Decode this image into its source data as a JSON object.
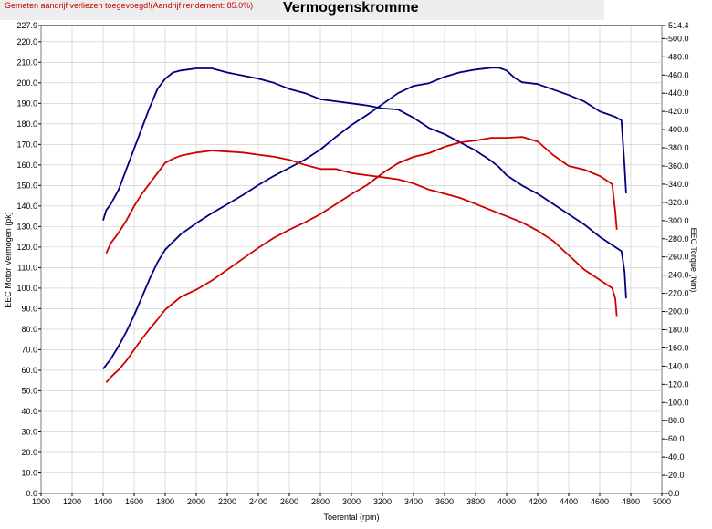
{
  "header": {
    "note": "Gemeten aandrijf verliezen toegevoegd!(Aandrijf rendement: 85.0%)",
    "title": "Vermogenskromme"
  },
  "chart_data": {
    "type": "line",
    "xlabel": "Toerental (rpm)",
    "ylabel_left": "EEC Motor Vermogen (pk)",
    "ylabel_right": "EEC Torque (Nm)",
    "xlim": [
      1000,
      5000
    ],
    "ylim_left": [
      0,
      227.9
    ],
    "ylim_right": [
      0,
      514.4
    ],
    "x_ticks": [
      1000,
      1200,
      1400,
      1600,
      1800,
      2000,
      2200,
      2400,
      2600,
      2800,
      3000,
      3200,
      3400,
      3600,
      3800,
      4000,
      4200,
      4400,
      4600,
      4800,
      5000
    ],
    "y_left_ticks": [
      "0.0",
      "10.0",
      "20.0",
      "30.0",
      "40.0",
      "50.0",
      "60.0",
      "70.0",
      "80.0",
      "90.0",
      "100.0",
      "110.0",
      "120.0",
      "130.0",
      "140.0",
      "150.0",
      "160.0",
      "170.0",
      "180.0",
      "190.0",
      "200.0",
      "210.0",
      "220.0",
      "227.9"
    ],
    "y_left_values": [
      0,
      10,
      20,
      30,
      40,
      50,
      60,
      70,
      80,
      90,
      100,
      110,
      120,
      130,
      140,
      150,
      160,
      170,
      180,
      190,
      200,
      210,
      220,
      227.9
    ],
    "y_right_ticks": [
      "0.0",
      "20.0",
      "40.0",
      "60.0",
      "80.0",
      "100.0",
      "120.0",
      "140.0",
      "160.0",
      "180.0",
      "200.0",
      "220.0",
      "240.0",
      "260.0",
      "280.0",
      "300.0",
      "320.0",
      "340.0",
      "360.0",
      "380.0",
      "400.0",
      "420.0",
      "440.0",
      "460.0",
      "480.0",
      "500.0",
      "514.4"
    ],
    "y_right_values": [
      0,
      20,
      40,
      60,
      80,
      100,
      120,
      140,
      160,
      180,
      200,
      220,
      240,
      260,
      280,
      300,
      320,
      340,
      360,
      380,
      400,
      420,
      440,
      460,
      480,
      500,
      514.4
    ],
    "grid": true,
    "series": [
      {
        "axis": "left",
        "color": "#000080",
        "points": [
          [
            1400,
            133
          ],
          [
            1420,
            138
          ],
          [
            1450,
            141
          ],
          [
            1500,
            148
          ],
          [
            1550,
            158
          ],
          [
            1600,
            168
          ],
          [
            1650,
            178
          ],
          [
            1700,
            188
          ],
          [
            1750,
            197
          ],
          [
            1800,
            202
          ],
          [
            1850,
            205
          ],
          [
            1900,
            206
          ],
          [
            1950,
            206.5
          ],
          [
            2000,
            207
          ],
          [
            2050,
            207
          ],
          [
            2100,
            207
          ],
          [
            2200,
            205
          ],
          [
            2300,
            203.5
          ],
          [
            2400,
            202
          ],
          [
            2500,
            200
          ],
          [
            2600,
            197
          ],
          [
            2700,
            195
          ],
          [
            2800,
            192
          ],
          [
            2900,
            191
          ],
          [
            3000,
            190
          ],
          [
            3100,
            189
          ],
          [
            3200,
            187.5
          ],
          [
            3300,
            187
          ],
          [
            3400,
            183
          ],
          [
            3500,
            178
          ],
          [
            3600,
            175
          ],
          [
            3700,
            171
          ],
          [
            3800,
            167
          ],
          [
            3900,
            162
          ],
          [
            3950,
            159
          ],
          [
            4000,
            155
          ],
          [
            4100,
            150
          ],
          [
            4200,
            146
          ],
          [
            4300,
            141
          ],
          [
            4400,
            136
          ],
          [
            4500,
            131
          ],
          [
            4600,
            125
          ],
          [
            4700,
            120
          ],
          [
            4740,
            118
          ],
          [
            4760,
            108
          ],
          [
            4770,
            95
          ]
        ]
      },
      {
        "axis": "right",
        "color": "#000080",
        "points": [
          [
            1400,
            137
          ],
          [
            1450,
            148
          ],
          [
            1500,
            162
          ],
          [
            1550,
            178
          ],
          [
            1600,
            196
          ],
          [
            1650,
            216
          ],
          [
            1700,
            236
          ],
          [
            1750,
            254
          ],
          [
            1800,
            268
          ],
          [
            1900,
            285
          ],
          [
            2000,
            297
          ],
          [
            2100,
            308
          ],
          [
            2200,
            318
          ],
          [
            2300,
            328
          ],
          [
            2400,
            339
          ],
          [
            2500,
            349
          ],
          [
            2600,
            358
          ],
          [
            2700,
            367
          ],
          [
            2800,
            378
          ],
          [
            2900,
            392
          ],
          [
            3000,
            405
          ],
          [
            3100,
            416
          ],
          [
            3200,
            428
          ],
          [
            3300,
            440
          ],
          [
            3400,
            448
          ],
          [
            3500,
            451
          ],
          [
            3600,
            458
          ],
          [
            3700,
            463
          ],
          [
            3800,
            466
          ],
          [
            3900,
            468
          ],
          [
            3950,
            468
          ],
          [
            4000,
            465
          ],
          [
            4050,
            457
          ],
          [
            4100,
            452
          ],
          [
            4200,
            450
          ],
          [
            4300,
            444
          ],
          [
            4400,
            438
          ],
          [
            4500,
            431
          ],
          [
            4600,
            420
          ],
          [
            4700,
            414
          ],
          [
            4740,
            410
          ],
          [
            4760,
            360
          ],
          [
            4770,
            330
          ]
        ]
      },
      {
        "axis": "left",
        "color": "#cc0000",
        "points": [
          [
            1420,
            117
          ],
          [
            1450,
            122
          ],
          [
            1500,
            127
          ],
          [
            1550,
            133
          ],
          [
            1600,
            140
          ],
          [
            1650,
            146
          ],
          [
            1700,
            151
          ],
          [
            1750,
            156
          ],
          [
            1800,
            161
          ],
          [
            1850,
            163
          ],
          [
            1900,
            164.5
          ],
          [
            2000,
            166
          ],
          [
            2100,
            167
          ],
          [
            2200,
            166.5
          ],
          [
            2300,
            166
          ],
          [
            2400,
            165
          ],
          [
            2500,
            164
          ],
          [
            2600,
            162.5
          ],
          [
            2700,
            160
          ],
          [
            2800,
            158
          ],
          [
            2900,
            158
          ],
          [
            3000,
            156
          ],
          [
            3100,
            155
          ],
          [
            3200,
            154
          ],
          [
            3300,
            153
          ],
          [
            3400,
            151
          ],
          [
            3500,
            148
          ],
          [
            3600,
            146
          ],
          [
            3700,
            144
          ],
          [
            3800,
            141
          ],
          [
            3900,
            138
          ],
          [
            4000,
            135
          ],
          [
            4100,
            132
          ],
          [
            4200,
            128
          ],
          [
            4300,
            123
          ],
          [
            4400,
            116
          ],
          [
            4500,
            109
          ],
          [
            4600,
            104
          ],
          [
            4680,
            100
          ],
          [
            4700,
            95
          ],
          [
            4710,
            86
          ]
        ]
      },
      {
        "axis": "right",
        "color": "#cc0000",
        "points": [
          [
            1420,
            122
          ],
          [
            1450,
            128
          ],
          [
            1500,
            136
          ],
          [
            1550,
            146
          ],
          [
            1600,
            158
          ],
          [
            1650,
            170
          ],
          [
            1700,
            181
          ],
          [
            1750,
            191
          ],
          [
            1800,
            202
          ],
          [
            1900,
            216
          ],
          [
            2000,
            224
          ],
          [
            2100,
            234
          ],
          [
            2200,
            246
          ],
          [
            2300,
            258
          ],
          [
            2400,
            270
          ],
          [
            2500,
            281
          ],
          [
            2600,
            290
          ],
          [
            2700,
            298
          ],
          [
            2800,
            307
          ],
          [
            2900,
            318
          ],
          [
            3000,
            329
          ],
          [
            3100,
            339
          ],
          [
            3200,
            352
          ],
          [
            3300,
            363
          ],
          [
            3400,
            370
          ],
          [
            3500,
            374
          ],
          [
            3600,
            381
          ],
          [
            3700,
            386
          ],
          [
            3800,
            388
          ],
          [
            3900,
            391
          ],
          [
            4000,
            391
          ],
          [
            4100,
            392
          ],
          [
            4200,
            387
          ],
          [
            4300,
            372
          ],
          [
            4400,
            360
          ],
          [
            4500,
            356
          ],
          [
            4600,
            349
          ],
          [
            4680,
            340
          ],
          [
            4700,
            310
          ],
          [
            4710,
            290
          ]
        ]
      }
    ]
  }
}
